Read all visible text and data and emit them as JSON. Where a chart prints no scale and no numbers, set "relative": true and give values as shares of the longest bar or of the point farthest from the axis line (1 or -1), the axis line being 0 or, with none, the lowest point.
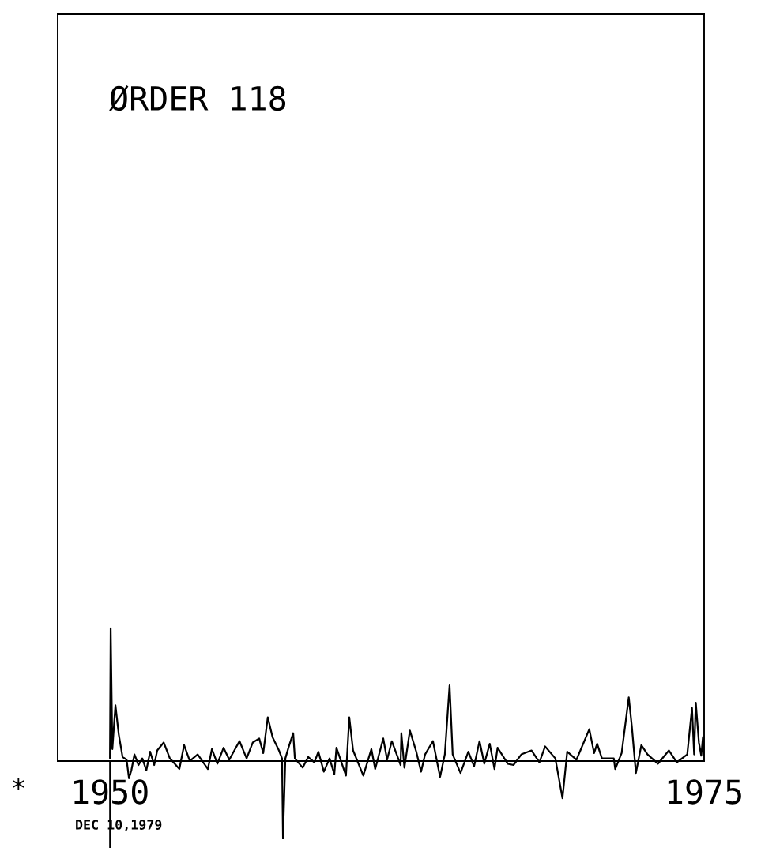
{
  "chart_data": {
    "type": "line",
    "relative": true,
    "annotations": [
      "ØRDER 118",
      "DEC 10,1979",
      "*"
    ],
    "xlim": [
      1947.8,
      1975
    ],
    "xticks": [
      1950,
      1975
    ],
    "ref_lines": [
      {
        "axis": "x",
        "value": 1950,
        "label": null,
        "color": "#000000"
      }
    ],
    "grid": false,
    "legend": false,
    "marker": "none",
    "line_style": "solid",
    "series": [
      {
        "color": "#000000",
        "x": [
          1950.0,
          1950.03,
          1950.1,
          1950.23,
          1950.37,
          1950.53,
          1950.7,
          1950.8,
          1950.9,
          1951.03,
          1951.2,
          1951.36,
          1951.53,
          1951.69,
          1951.86,
          1951.99,
          1952.26,
          1952.52,
          1952.92,
          1953.12,
          1953.36,
          1953.69,
          1954.12,
          1954.29,
          1954.52,
          1954.78,
          1955.02,
          1955.45,
          1955.75,
          1956.01,
          1956.28,
          1956.45,
          1956.64,
          1956.84,
          1957.11,
          1957.24,
          1957.28,
          1957.38,
          1957.51,
          1957.71,
          1957.78,
          1958.11,
          1958.34,
          1958.6,
          1958.77,
          1959.0,
          1959.24,
          1959.44,
          1959.53,
          1959.93,
          1960.07,
          1960.23,
          1960.66,
          1961.0,
          1961.16,
          1961.5,
          1961.66,
          1961.86,
          1962.23,
          1962.26,
          1962.39,
          1962.62,
          1962.89,
          1963.09,
          1963.26,
          1963.59,
          1963.89,
          1964.09,
          1964.29,
          1964.42,
          1964.75,
          1965.08,
          1965.32,
          1965.55,
          1965.75,
          1965.98,
          1966.18,
          1966.31,
          1966.74,
          1966.98,
          1967.31,
          1967.74,
          1968.07,
          1968.31,
          1968.74,
          1969.04,
          1969.24,
          1969.63,
          1970.17,
          1970.37,
          1970.5,
          1970.7,
          1971.2,
          1971.26,
          1971.53,
          1971.83,
          1971.96,
          1972.13,
          1972.36,
          1972.62,
          1973.06,
          1973.52,
          1973.85,
          1974.29,
          1974.49,
          1974.58,
          1974.65,
          1974.78,
          1974.88,
          1974.95,
          1974.98
        ],
        "values": [
          0.02,
          1.0,
          0.09,
          0.42,
          0.2,
          0.03,
          0.01,
          -0.13,
          -0.07,
          0.05,
          -0.03,
          0.02,
          -0.07,
          0.07,
          -0.03,
          0.08,
          0.14,
          0.02,
          -0.06,
          0.12,
          0.0,
          0.05,
          -0.06,
          0.09,
          -0.02,
          0.1,
          0.01,
          0.15,
          0.02,
          0.14,
          0.17,
          0.06,
          0.33,
          0.18,
          0.08,
          0.02,
          -0.58,
          0.02,
          0.1,
          0.21,
          0.02,
          -0.05,
          0.03,
          -0.01,
          0.07,
          -0.08,
          0.02,
          -0.1,
          0.1,
          -0.11,
          0.33,
          0.08,
          -0.11,
          0.09,
          -0.06,
          0.17,
          0.01,
          0.15,
          -0.03,
          0.21,
          -0.05,
          0.23,
          0.07,
          -0.08,
          0.05,
          0.15,
          -0.12,
          0.05,
          0.57,
          0.05,
          -0.09,
          0.07,
          -0.04,
          0.15,
          -0.02,
          0.13,
          -0.06,
          0.1,
          -0.02,
          -0.03,
          0.05,
          0.08,
          -0.01,
          0.11,
          0.02,
          -0.28,
          0.07,
          0.01,
          0.24,
          0.06,
          0.13,
          0.02,
          0.02,
          -0.06,
          0.06,
          0.48,
          0.26,
          -0.09,
          0.12,
          0.05,
          -0.02,
          0.08,
          -0.01,
          0.05,
          0.4,
          0.05,
          0.44,
          0.14,
          0.04,
          0.18,
          0.04
        ]
      }
    ]
  }
}
